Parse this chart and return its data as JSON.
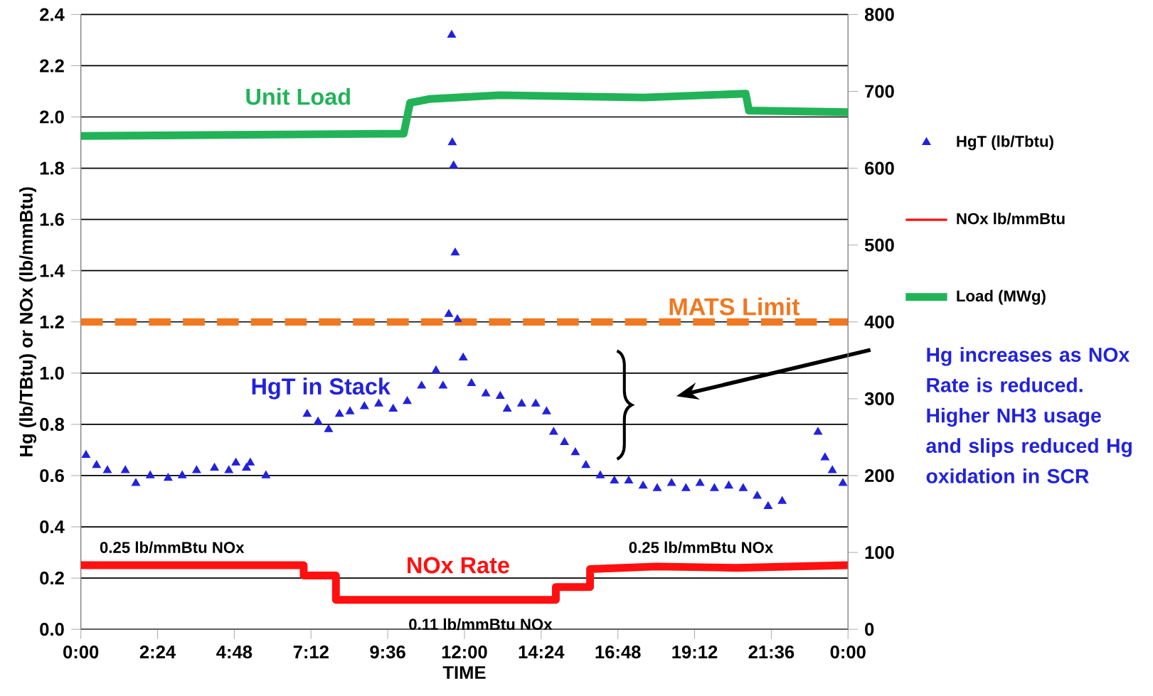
{
  "chart_data": {
    "type": "line",
    "xlabel": "TIME",
    "ylabel": "Hg (lb/TBtu) or NOx (lb/mmBtu)",
    "xlim": [
      0,
      24
    ],
    "xticks": [
      {
        "value": 0,
        "label": "0:00"
      },
      {
        "value": 2.4,
        "label": "2:24"
      },
      {
        "value": 4.8,
        "label": "4:48"
      },
      {
        "value": 7.2,
        "label": "7:12"
      },
      {
        "value": 9.6,
        "label": "9:36"
      },
      {
        "value": 12,
        "label": "12:00"
      },
      {
        "value": 14.4,
        "label": "14:24"
      },
      {
        "value": 16.8,
        "label": "16:48"
      },
      {
        "value": 19.2,
        "label": "19:12"
      },
      {
        "value": 21.6,
        "label": "21:36"
      },
      {
        "value": 24,
        "label": "0:00"
      }
    ],
    "ylim": [
      0,
      2.4
    ],
    "yticks": [
      {
        "value": 0,
        "label": "0.0"
      },
      {
        "value": 0.2,
        "label": "0.2"
      },
      {
        "value": 0.4,
        "label": "0.4"
      },
      {
        "value": 0.6,
        "label": "0.6"
      },
      {
        "value": 0.8,
        "label": "0.8"
      },
      {
        "value": 1.0,
        "label": "1.0"
      },
      {
        "value": 1.2,
        "label": "1.2"
      },
      {
        "value": 1.4,
        "label": "1.4"
      },
      {
        "value": 1.6,
        "label": "1.6"
      },
      {
        "value": 1.8,
        "label": "1.8"
      },
      {
        "value": 2.0,
        "label": "2.0"
      },
      {
        "value": 2.2,
        "label": "2.2"
      },
      {
        "value": 2.4,
        "label": "2.4"
      }
    ],
    "y2lim": [
      0,
      800
    ],
    "y2ticks": [
      0,
      100,
      200,
      300,
      400,
      500,
      600,
      700,
      800
    ],
    "grid": "y",
    "legend": "right",
    "series": [
      {
        "name": "HgT (lb/Tbtu)",
        "type": "scatter",
        "marker": "triangle",
        "color": "#2222dd",
        "x": [
          0.16,
          0.49,
          0.83,
          1.39,
          1.72,
          2.17,
          2.73,
          3.17,
          3.62,
          4.18,
          4.63,
          4.85,
          5.18,
          5.3,
          5.79,
          7.08,
          7.42,
          7.75,
          8.09,
          8.42,
          8.87,
          9.32,
          9.77,
          10.21,
          10.66,
          11.11,
          11.33,
          11.51,
          11.6,
          11.62,
          11.66,
          11.71,
          11.78,
          11.96,
          12.22,
          12.67,
          13.12,
          13.34,
          13.79,
          14.23,
          14.57,
          14.79,
          15.13,
          15.47,
          15.8,
          16.25,
          16.69,
          17.14,
          17.59,
          18.03,
          18.48,
          18.93,
          19.37,
          19.82,
          20.27,
          20.72,
          21.16,
          21.5,
          21.94,
          23.06,
          23.28,
          23.51,
          23.84
        ],
        "values": [
          0.68,
          0.64,
          0.62,
          0.62,
          0.57,
          0.6,
          0.59,
          0.6,
          0.62,
          0.63,
          0.62,
          0.65,
          0.63,
          0.65,
          0.6,
          0.84,
          0.81,
          0.78,
          0.84,
          0.85,
          0.87,
          0.88,
          0.86,
          0.89,
          0.95,
          1.01,
          0.95,
          1.23,
          2.32,
          1.9,
          1.81,
          1.47,
          1.21,
          1.06,
          0.96,
          0.92,
          0.91,
          0.86,
          0.88,
          0.88,
          0.85,
          0.77,
          0.73,
          0.69,
          0.64,
          0.6,
          0.58,
          0.58,
          0.56,
          0.55,
          0.57,
          0.55,
          0.57,
          0.55,
          0.56,
          0.55,
          0.52,
          0.48,
          0.5,
          0.77,
          0.67,
          0.62,
          0.57
        ]
      },
      {
        "name": "NOx lb/mmBtu",
        "color": "#ff1010",
        "x": [
          0,
          6.97,
          6.97,
          7.98,
          7.98,
          14.86,
          14.86,
          15.93,
          15.93,
          18,
          20.5,
          24
        ],
        "values": [
          0.25,
          0.25,
          0.21,
          0.21,
          0.115,
          0.115,
          0.165,
          0.165,
          0.235,
          0.245,
          0.24,
          0.25
        ]
      },
      {
        "name": "Load (MWg)",
        "axis": "y2",
        "color": "#22b358",
        "x": [
          0,
          10.1,
          10.3,
          10.9,
          13.1,
          17.6,
          20.8,
          20.9,
          24
        ],
        "values": [
          642,
          645,
          685,
          690,
          695,
          692,
          697,
          675,
          673
        ]
      }
    ],
    "ref_lines": [
      {
        "axis": "y",
        "value": 1.2,
        "label": "MATS Limit",
        "color": "#f07820",
        "line_style": "dashed"
      }
    ],
    "annotations": [
      "Unit Load",
      "HgT in Stack",
      "NOx Rate",
      "0.25  lb/mmBtu NOx",
      "0.25  lb/mmBtu NOx",
      "0.11  lb/mmBtu NOx",
      "Hg increases as NOx Rate is reduced. Higher NH3 usage and slips reduced Hg oxidation in SCR"
    ]
  }
}
